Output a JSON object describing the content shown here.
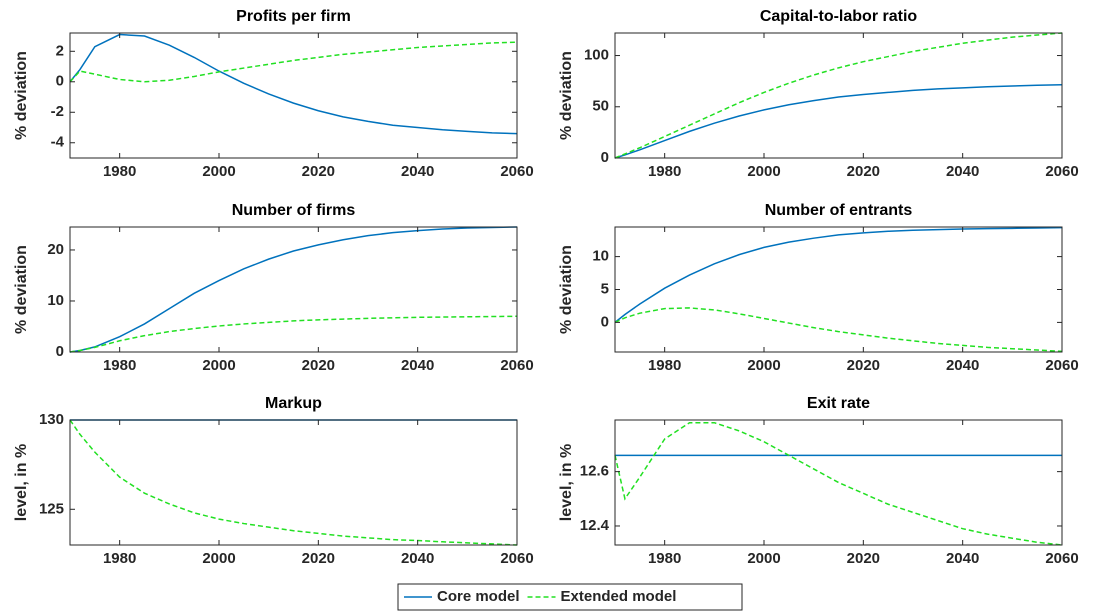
{
  "chart_data": [
    {
      "type": "line",
      "title": "Profits per firm",
      "ylabel": "% deviation",
      "x": [
        1970,
        1972,
        1975,
        1980,
        1985,
        1990,
        1995,
        2000,
        2005,
        2010,
        2015,
        2020,
        2025,
        2030,
        2035,
        2040,
        2045,
        2050,
        2055,
        2060
      ],
      "xlim": [
        1970,
        2060
      ],
      "xticks": [
        1980,
        2000,
        2020,
        2040,
        2060
      ],
      "ylim": [
        -5,
        3.2
      ],
      "yticks": [
        -4,
        -2,
        0,
        2
      ],
      "series": [
        {
          "name": "Core model",
          "color": "#0072bd",
          "linestyle": "solid",
          "values": [
            0,
            0.8,
            2.3,
            3.1,
            3.0,
            2.4,
            1.6,
            0.7,
            -0.1,
            -0.8,
            -1.4,
            -1.9,
            -2.3,
            -2.6,
            -2.85,
            -3.0,
            -3.15,
            -3.25,
            -3.35,
            -3.4
          ]
        },
        {
          "name": "Extended model",
          "color": "#22e022",
          "linestyle": "dashed",
          "values": [
            0,
            0.7,
            0.5,
            0.15,
            0.0,
            0.1,
            0.35,
            0.65,
            0.9,
            1.15,
            1.4,
            1.6,
            1.8,
            1.95,
            2.1,
            2.25,
            2.35,
            2.45,
            2.55,
            2.6
          ]
        }
      ]
    },
    {
      "type": "line",
      "title": "Capital-to-labor ratio",
      "ylabel": "% deviation",
      "x": [
        1970,
        1972,
        1975,
        1980,
        1985,
        1990,
        1995,
        2000,
        2005,
        2010,
        2015,
        2020,
        2025,
        2030,
        2035,
        2040,
        2045,
        2050,
        2055,
        2060
      ],
      "xlim": [
        1970,
        2060
      ],
      "xticks": [
        1980,
        2000,
        2020,
        2040,
        2060
      ],
      "ylim": [
        0,
        122
      ],
      "yticks": [
        0,
        50,
        100
      ],
      "series": [
        {
          "color": "#0072bd",
          "linestyle": "solid",
          "values": [
            0,
            3,
            8,
            17,
            26,
            34,
            41,
            47,
            52,
            56,
            59.5,
            62,
            64,
            66,
            67.5,
            68.5,
            69.5,
            70.3,
            71,
            71.5
          ]
        },
        {
          "color": "#22e022",
          "linestyle": "dashed",
          "values": [
            0,
            4,
            10,
            21,
            32,
            43,
            54,
            64,
            73,
            81,
            88,
            94,
            99,
            104,
            108,
            112,
            115,
            118,
            120,
            122
          ]
        }
      ]
    },
    {
      "type": "line",
      "title": "Number of firms",
      "ylabel": "% deviation",
      "x": [
        1970,
        1972,
        1975,
        1980,
        1985,
        1990,
        1995,
        2000,
        2005,
        2010,
        2015,
        2020,
        2025,
        2030,
        2035,
        2040,
        2045,
        2050,
        2055,
        2060
      ],
      "xlim": [
        1970,
        2060
      ],
      "xticks": [
        1980,
        2000,
        2020,
        2040,
        2060
      ],
      "ylim": [
        0,
        24.5
      ],
      "yticks": [
        0,
        10,
        20
      ],
      "series": [
        {
          "color": "#0072bd",
          "linestyle": "solid",
          "values": [
            0,
            0.3,
            1,
            3,
            5.5,
            8.5,
            11.5,
            14,
            16.3,
            18.2,
            19.8,
            21,
            22,
            22.8,
            23.4,
            23.8,
            24.1,
            24.3,
            24.4,
            24.5
          ]
        },
        {
          "color": "#22e022",
          "linestyle": "dashed",
          "values": [
            0,
            0.3,
            0.9,
            2.2,
            3.2,
            4,
            4.6,
            5.1,
            5.5,
            5.8,
            6.1,
            6.3,
            6.45,
            6.6,
            6.7,
            6.8,
            6.85,
            6.9,
            6.95,
            7
          ]
        }
      ]
    },
    {
      "type": "line",
      "title": "Number of entrants",
      "ylabel": "% deviation",
      "x": [
        1970,
        1972,
        1975,
        1980,
        1985,
        1990,
        1995,
        2000,
        2005,
        2010,
        2015,
        2020,
        2025,
        2030,
        2035,
        2040,
        2045,
        2050,
        2055,
        2060
      ],
      "xlim": [
        1970,
        2060
      ],
      "xticks": [
        1980,
        2000,
        2020,
        2040,
        2060
      ],
      "ylim": [
        -4.5,
        14.5
      ],
      "yticks": [
        0,
        5,
        10
      ],
      "series": [
        {
          "color": "#0072bd",
          "linestyle": "solid",
          "values": [
            0,
            1.2,
            2.8,
            5.2,
            7.2,
            8.9,
            10.3,
            11.4,
            12.2,
            12.8,
            13.3,
            13.6,
            13.85,
            14,
            14.1,
            14.2,
            14.25,
            14.3,
            14.35,
            14.4
          ]
        },
        {
          "color": "#22e022",
          "linestyle": "dashed",
          "values": [
            0,
            0.7,
            1.4,
            2.1,
            2.2,
            1.9,
            1.3,
            0.6,
            -0.1,
            -0.8,
            -1.4,
            -1.9,
            -2.4,
            -2.8,
            -3.2,
            -3.5,
            -3.8,
            -4.0,
            -4.2,
            -4.4
          ]
        }
      ]
    },
    {
      "type": "line",
      "title": "Markup",
      "ylabel": "level, in %",
      "x": [
        1970,
        1972,
        1975,
        1980,
        1985,
        1990,
        1995,
        2000,
        2005,
        2010,
        2015,
        2020,
        2025,
        2030,
        2035,
        2040,
        2045,
        2050,
        2055,
        2060
      ],
      "xlim": [
        1970,
        2060
      ],
      "xticks": [
        1980,
        2000,
        2020,
        2040,
        2060
      ],
      "ylim": [
        123,
        130
      ],
      "yticks": [
        125,
        130
      ],
      "series": [
        {
          "color": "#0072bd",
          "linestyle": "solid",
          "values": [
            130,
            130,
            130,
            130,
            130,
            130,
            130,
            130,
            130,
            130,
            130,
            130,
            130,
            130,
            130,
            130,
            130,
            130,
            130,
            130
          ]
        },
        {
          "color": "#22e022",
          "linestyle": "dashed",
          "values": [
            130,
            129.2,
            128.2,
            126.8,
            125.9,
            125.3,
            124.8,
            124.45,
            124.2,
            124,
            123.8,
            123.65,
            123.5,
            123.4,
            123.3,
            123.25,
            123.18,
            123.12,
            123.06,
            123
          ]
        }
      ]
    },
    {
      "type": "line",
      "title": "Exit rate",
      "ylabel": "level, in %",
      "x": [
        1970,
        1972,
        1975,
        1980,
        1985,
        1990,
        1995,
        2000,
        2005,
        2010,
        2015,
        2020,
        2025,
        2030,
        2035,
        2040,
        2045,
        2050,
        2055,
        2060
      ],
      "xlim": [
        1970,
        2060
      ],
      "xticks": [
        1980,
        2000,
        2020,
        2040,
        2060
      ],
      "ylim": [
        12.33,
        12.79
      ],
      "yticks": [
        12.4,
        12.6
      ],
      "series": [
        {
          "color": "#0072bd",
          "linestyle": "solid",
          "values": [
            12.66,
            12.66,
            12.66,
            12.66,
            12.66,
            12.66,
            12.66,
            12.66,
            12.66,
            12.66,
            12.66,
            12.66,
            12.66,
            12.66,
            12.66,
            12.66,
            12.66,
            12.66,
            12.66,
            12.66
          ]
        },
        {
          "color": "#22e022",
          "linestyle": "dashed",
          "values": [
            12.66,
            12.5,
            12.58,
            12.72,
            12.78,
            12.78,
            12.75,
            12.71,
            12.66,
            12.61,
            12.56,
            12.52,
            12.48,
            12.45,
            12.42,
            12.39,
            12.37,
            12.355,
            12.34,
            12.33
          ]
        }
      ]
    }
  ]
}
